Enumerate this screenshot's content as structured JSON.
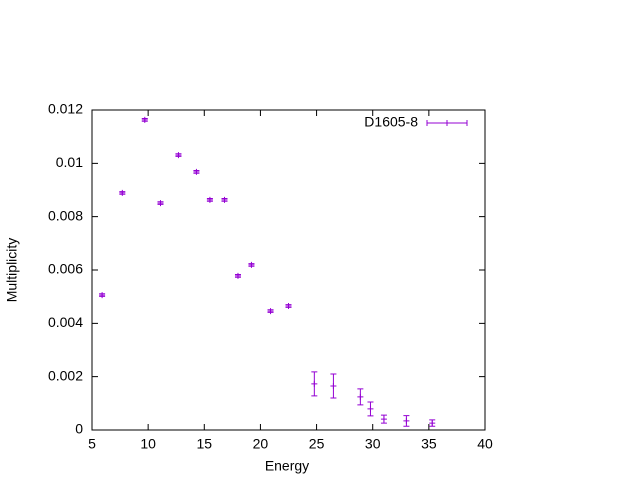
{
  "chart_data": {
    "type": "errorbar",
    "xlabel": "Energy",
    "ylabel": "Multiplicity",
    "xlim": [
      5,
      40
    ],
    "xticks": [
      5,
      10,
      15,
      20,
      25,
      30,
      35,
      40
    ],
    "ylim": [
      0,
      0.012
    ],
    "yticks": [
      0,
      0.002,
      0.004,
      0.006,
      0.008,
      0.01,
      0.012
    ],
    "legend": "top-right",
    "series": [
      {
        "name": "D1605-8",
        "color": "#9400d3",
        "x": [
          5.9,
          7.7,
          9.7,
          11.1,
          12.7,
          14.3,
          15.5,
          16.8,
          18.0,
          19.2,
          20.9,
          22.5,
          24.8,
          26.5,
          28.9,
          29.8,
          31.0,
          33.0,
          35.3
        ],
        "values": [
          0.00506,
          0.00889,
          0.01163,
          0.00851,
          0.01031,
          0.00968,
          0.00863,
          0.00863,
          0.00578,
          0.00619,
          0.00446,
          0.00465,
          0.00173,
          0.00165,
          0.00124,
          0.00079,
          0.00041,
          0.00034,
          0.00026
        ],
        "errors": [
          5e-05,
          5e-05,
          5e-05,
          5e-05,
          5e-05,
          5e-05,
          5e-05,
          5e-05,
          5e-05,
          5e-05,
          5e-05,
          5e-05,
          0.00045,
          0.00045,
          0.0003,
          0.00026,
          0.00015,
          0.0002,
          0.00012
        ]
      }
    ]
  }
}
